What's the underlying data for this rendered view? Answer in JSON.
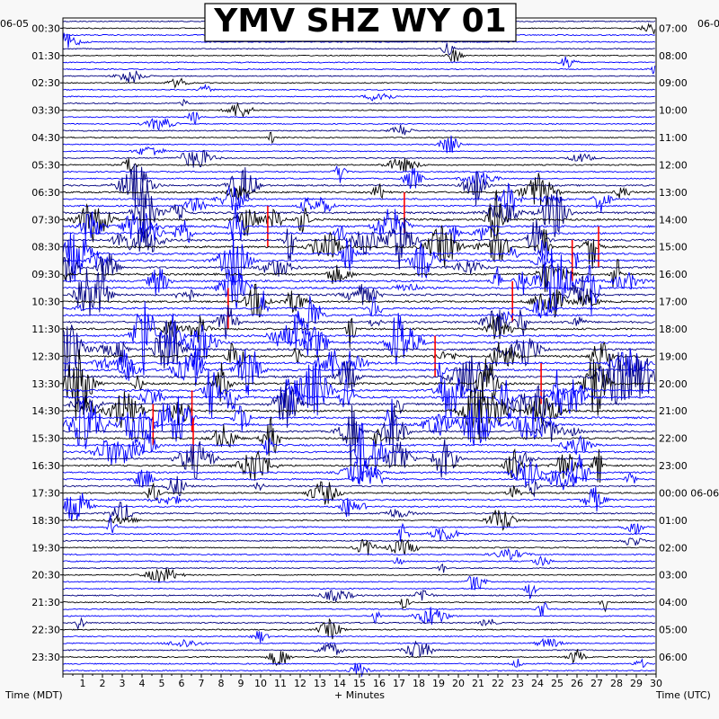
{
  "chart_data": {
    "type": "line",
    "title": "YMV SHZ WY 01",
    "xlabel": "+ Minutes",
    "ylabel_left": "Time (MDT)",
    "ylabel_right": "Time (UTC)",
    "left_date": "06-05",
    "right_date_top": "06-0",
    "right_date_change": "06-06",
    "xlim": [
      0,
      30
    ],
    "x_ticks": [
      1,
      2,
      3,
      4,
      5,
      6,
      7,
      8,
      9,
      10,
      11,
      12,
      13,
      14,
      15,
      16,
      17,
      18,
      19,
      20,
      21,
      22,
      23,
      24,
      25,
      26,
      27,
      28,
      29,
      30
    ],
    "rows_per_hour": 4,
    "row_minutes": 15,
    "left_labels": [
      "00:30",
      "01:30",
      "02:30",
      "03:30",
      "04:30",
      "05:30",
      "06:30",
      "07:30",
      "08:30",
      "09:30",
      "10:30",
      "11:30",
      "12:30",
      "13:30",
      "14:30",
      "15:30",
      "16:30",
      "17:30",
      "18:30",
      "19:30",
      "20:30",
      "21:30",
      "22:30",
      "23:30"
    ],
    "right_labels": [
      "07:00",
      "08:00",
      "09:00",
      "10:00",
      "11:00",
      "12:00",
      "13:00",
      "14:00",
      "15:00",
      "16:00",
      "17:00",
      "18:00",
      "19:00",
      "20:00",
      "21:00",
      "22:00",
      "23:00",
      "00:00 06-06",
      "01:00",
      "02:00",
      "03:00",
      "04:00",
      "05:00",
      "06:00"
    ],
    "trace_colors": [
      "#000080",
      "#000000",
      "#ff0000",
      "#0000ff"
    ],
    "clip_color": "#ff0000",
    "background": "#ffffff",
    "activity_by_hour": [
      0.5,
      0.4,
      0.4,
      0.4,
      0.5,
      0.8,
      1.7,
      2.5,
      2.6,
      2.5,
      2.2,
      2.4,
      2.6,
      2.8,
      2.5,
      2.1,
      1.7,
      1.4,
      1.0,
      0.8,
      0.6,
      0.8,
      0.7,
      0.7
    ]
  }
}
